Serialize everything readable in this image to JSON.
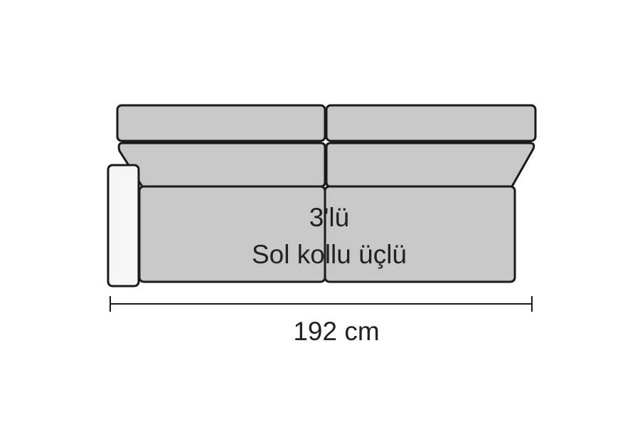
{
  "labels": {
    "line1": "3'lü",
    "line2": "Sol kollu üçlü"
  },
  "dimension": {
    "width_text": "192 cm"
  },
  "colors": {
    "cushion_fill": "#c8c8c8",
    "arm_fill": "#f5f5f5",
    "outline": "#1a1a1a",
    "text": "#222222"
  }
}
